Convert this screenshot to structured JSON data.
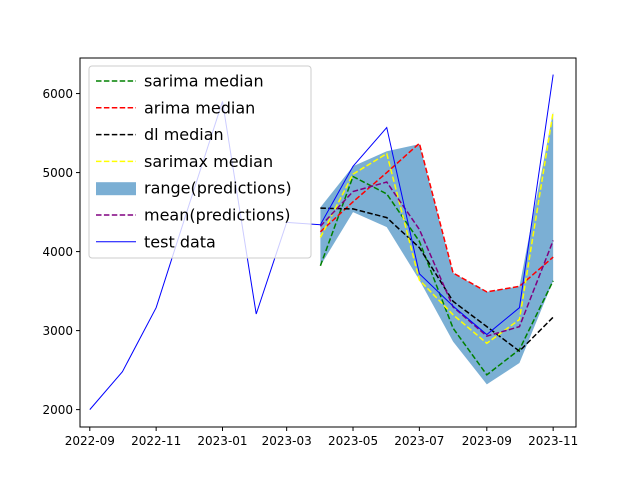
{
  "chart_data": {
    "type": "line",
    "title": "",
    "xlabel": "",
    "ylabel": "",
    "xlim": [
      "2022-08-23",
      "2023-11-22"
    ],
    "ylim": [
      1780,
      6450
    ],
    "x_ticks": [
      "2022-09",
      "2022-11",
      "2023-01",
      "2023-03",
      "2023-05",
      "2023-07",
      "2023-09",
      "2023-11"
    ],
    "y_ticks": [
      2000,
      3000,
      4000,
      5000,
      6000
    ],
    "grid": false,
    "legend_placement": "upper-left",
    "test_data": {
      "name": "test data",
      "color": "#0000ff",
      "x": [
        "2022-09-01",
        "2022-10-01",
        "2022-11-01",
        "2022-12-01",
        "2023-01-01",
        "2023-02-01",
        "2023-03-01",
        "2023-04-01",
        "2023-05-01",
        "2023-06-01",
        "2023-07-01",
        "2023-08-01",
        "2023-09-01",
        "2023-10-01",
        "2023-11-01"
      ],
      "values": [
        2000,
        2480,
        3290,
        4580,
        5900,
        3210,
        4370,
        4340,
        5080,
        5570,
        3720,
        3310,
        2950,
        3290,
        6240
      ]
    },
    "prediction_x": [
      "2023-04-01",
      "2023-05-01",
      "2023-06-01",
      "2023-07-01",
      "2023-08-01",
      "2023-09-01",
      "2023-10-01",
      "2023-11-01"
    ],
    "range": {
      "name": "range(predictions)",
      "color": "#7bafd4",
      "lower": [
        3820,
        4500,
        4310,
        3640,
        2860,
        2320,
        2590,
        3630
      ],
      "upper": [
        4560,
        5080,
        5270,
        5360,
        3730,
        3490,
        3560,
        5770
      ]
    },
    "series": [
      {
        "name": "sarima median",
        "color": "#008000",
        "values": [
          3820,
          4950,
          4730,
          4130,
          3030,
          2440,
          2760,
          3630
        ]
      },
      {
        "name": "arima median",
        "color": "#ff0000",
        "values": [
          4250,
          4630,
          5000,
          5370,
          3730,
          3490,
          3560,
          3930
        ]
      },
      {
        "name": "dl median",
        "color": "#000000",
        "values": [
          4550,
          4540,
          4430,
          4050,
          3370,
          3050,
          2740,
          3170
        ]
      },
      {
        "name": "sarimax median",
        "color": "#ffff00",
        "values": [
          4180,
          4980,
          5240,
          3640,
          3200,
          2840,
          3140,
          5770
        ]
      },
      {
        "name": "mean(predictions)",
        "color": "#800080",
        "values": [
          4320,
          4760,
          4880,
          4280,
          3300,
          2930,
          3050,
          4140
        ]
      }
    ],
    "legend": [
      "sarima median",
      "arima median",
      "dl median",
      "sarimax median",
      "range(predictions)",
      "mean(predictions)",
      "test data"
    ]
  }
}
